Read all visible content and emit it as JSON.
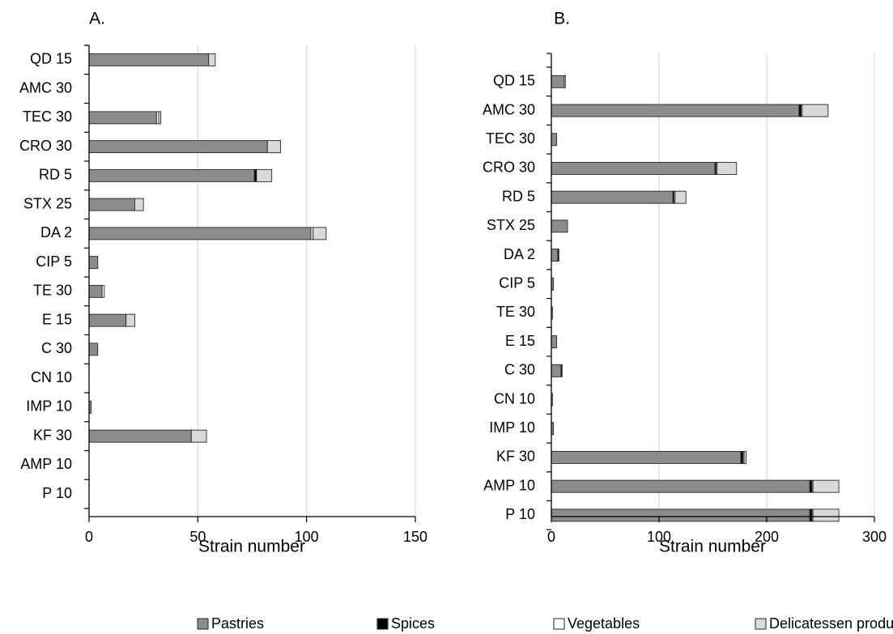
{
  "legend": [
    {
      "name": "Pastries",
      "color": "#8c8c8c"
    },
    {
      "name": "Spices",
      "color": "#000000"
    },
    {
      "name": "Vegetables",
      "color": "#ffffff"
    },
    {
      "name": "Delicatessen products",
      "color": "#d9d9d9"
    }
  ],
  "chart_data": [
    {
      "type": "bar",
      "orientation": "horizontal",
      "stacked": true,
      "panel_label": "A.",
      "xlabel": "Strain number",
      "xlim": [
        0,
        150
      ],
      "xticks": [
        0,
        50,
        100,
        150
      ],
      "grid": true,
      "categories": [
        "QD 15",
        "AMC 30",
        "TEC 30",
        "CRO 30",
        "RD 5",
        "STX 25",
        "DA 2",
        "CIP 5",
        "TE 30",
        "E 15",
        "C 30",
        "CN 10",
        "IMP 10",
        "KF 30",
        "AMP 10",
        "P 10"
      ],
      "series": [
        {
          "name": "Pastries",
          "values": [
            55,
            0,
            31,
            82,
            76,
            21,
            102,
            4,
            6,
            17,
            4,
            0,
            1,
            47,
            0,
            0
          ]
        },
        {
          "name": "Spices",
          "values": [
            0,
            0,
            0,
            0,
            1,
            0,
            0,
            0,
            0,
            0,
            0,
            0,
            0,
            0,
            0,
            0
          ]
        },
        {
          "name": "Vegetables",
          "values": [
            0,
            0,
            1,
            0,
            0,
            0,
            1,
            0,
            1,
            0,
            0,
            0,
            0,
            0,
            0,
            0
          ]
        },
        {
          "name": "Delicatessen products",
          "values": [
            3,
            0,
            1,
            6,
            7,
            4,
            6,
            0,
            0,
            4,
            0,
            0,
            0,
            7,
            0,
            0
          ]
        }
      ]
    },
    {
      "type": "bar",
      "orientation": "horizontal",
      "stacked": true,
      "panel_label": "B.",
      "xlabel": "Strain number",
      "xlim": [
        0,
        300
      ],
      "xticks": [
        0,
        100,
        200,
        300
      ],
      "grid": true,
      "categories": [
        "QD 15",
        "AMC 30",
        "TEC 30",
        "CRO 30",
        "RD 5",
        "STX 25",
        "DA 2",
        "CIP 5",
        "TE 30",
        "E 15",
        "C 30",
        "CN 10",
        "IMP 10",
        "KF 30",
        "AMP 10",
        "P 10"
      ],
      "series": [
        {
          "name": "Pastries",
          "values": [
            12,
            230,
            5,
            152,
            113,
            15,
            6,
            2,
            1,
            5,
            9,
            1,
            2,
            176,
            240,
            240
          ]
        },
        {
          "name": "Spices",
          "values": [
            0,
            2,
            0,
            1,
            1,
            0,
            1,
            0,
            0,
            0,
            1,
            0,
            0,
            2,
            2,
            2
          ]
        },
        {
          "name": "Vegetables",
          "values": [
            1,
            1,
            0,
            1,
            1,
            0,
            0,
            0,
            0,
            0,
            0,
            0,
            0,
            1,
            1,
            1
          ]
        },
        {
          "name": "Delicatessen products",
          "values": [
            0,
            24,
            0,
            18,
            10,
            0,
            0,
            0,
            0,
            0,
            0,
            0,
            0,
            2,
            24,
            24
          ]
        }
      ]
    }
  ]
}
